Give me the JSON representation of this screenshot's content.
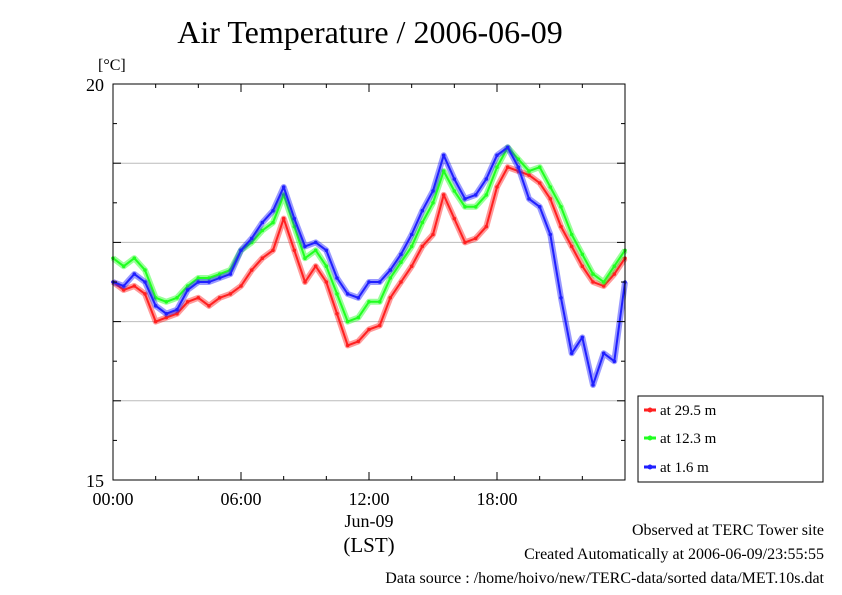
{
  "title": "Air Temperature / 2006-06-09",
  "chart_data": {
    "type": "line",
    "title": "Air Temperature / 2006-06-09",
    "ylabel": "[°C]",
    "xlabel": "(LST)",
    "ylim": [
      15,
      20
    ],
    "xlim": [
      0,
      24
    ],
    "y_tick_labels": [
      "20",
      "15"
    ],
    "y_gridlines": [
      16,
      17,
      18,
      19
    ],
    "x_tick_labels": [
      "00:00",
      "06:00",
      "12:00",
      "18:00"
    ],
    "date_label": "Jun-09",
    "legend_position": "bottom-right",
    "series": [
      {
        "name": "at 29.5 m",
        "color": "#ff2020",
        "x": [
          0,
          0.5,
          1,
          1.5,
          2,
          2.5,
          3,
          3.5,
          4,
          4.5,
          5,
          5.5,
          6,
          6.5,
          7,
          7.5,
          8,
          8.5,
          9,
          9.5,
          10,
          10.5,
          11,
          11.5,
          12,
          12.5,
          13,
          13.5,
          14,
          14.5,
          15,
          15.5,
          16,
          16.5,
          17,
          17.5,
          18,
          18.5,
          19,
          19.5,
          20,
          20.5,
          21,
          21.5,
          22,
          22.5,
          23,
          23.5,
          24
        ],
        "values": [
          17.5,
          17.4,
          17.45,
          17.35,
          17.0,
          17.05,
          17.1,
          17.25,
          17.3,
          17.2,
          17.3,
          17.35,
          17.45,
          17.65,
          17.8,
          17.9,
          18.3,
          17.9,
          17.5,
          17.7,
          17.5,
          17.1,
          16.7,
          16.75,
          16.9,
          16.95,
          17.3,
          17.5,
          17.7,
          17.95,
          18.1,
          18.6,
          18.3,
          18.0,
          18.05,
          18.2,
          18.7,
          18.95,
          18.9,
          18.85,
          18.75,
          18.55,
          18.2,
          17.95,
          17.7,
          17.5,
          17.45,
          17.6,
          17.8
        ]
      },
      {
        "name": "at 12.3 m",
        "color": "#20ff20",
        "x": [
          0,
          0.5,
          1,
          1.5,
          2,
          2.5,
          3,
          3.5,
          4,
          4.5,
          5,
          5.5,
          6,
          6.5,
          7,
          7.5,
          8,
          8.5,
          9,
          9.5,
          10,
          10.5,
          11,
          11.5,
          12,
          12.5,
          13,
          13.5,
          14,
          14.5,
          15,
          15.5,
          16,
          16.5,
          17,
          17.5,
          18,
          18.5,
          19,
          19.5,
          20,
          20.5,
          21,
          21.5,
          22,
          22.5,
          23,
          23.5,
          24
        ],
        "values": [
          17.8,
          17.7,
          17.8,
          17.65,
          17.3,
          17.25,
          17.3,
          17.45,
          17.55,
          17.55,
          17.6,
          17.65,
          17.9,
          18.0,
          18.15,
          18.25,
          18.6,
          18.2,
          17.8,
          17.9,
          17.7,
          17.35,
          17.0,
          17.05,
          17.25,
          17.25,
          17.55,
          17.75,
          17.95,
          18.25,
          18.5,
          18.9,
          18.65,
          18.45,
          18.45,
          18.6,
          18.95,
          19.2,
          19.05,
          18.9,
          18.95,
          18.7,
          18.45,
          18.1,
          17.85,
          17.6,
          17.5,
          17.7,
          17.9
        ]
      },
      {
        "name": "at 1.6 m",
        "color": "#2020ff",
        "x": [
          0,
          0.5,
          1,
          1.5,
          2,
          2.5,
          3,
          3.5,
          4,
          4.5,
          5,
          5.5,
          6,
          6.5,
          7,
          7.5,
          8,
          8.5,
          9,
          9.5,
          10,
          10.5,
          11,
          11.5,
          12,
          12.5,
          13,
          13.5,
          14,
          14.5,
          15,
          15.5,
          16,
          16.5,
          17,
          17.5,
          18,
          18.5,
          19,
          19.5,
          20,
          20.5,
          21,
          21.5,
          22,
          22.5,
          23,
          23.5,
          24
        ],
        "values": [
          17.5,
          17.45,
          17.6,
          17.5,
          17.2,
          17.1,
          17.15,
          17.4,
          17.5,
          17.5,
          17.55,
          17.6,
          17.9,
          18.05,
          18.25,
          18.4,
          18.7,
          18.3,
          17.95,
          18.0,
          17.9,
          17.55,
          17.35,
          17.3,
          17.5,
          17.5,
          17.65,
          17.85,
          18.1,
          18.4,
          18.65,
          19.1,
          18.8,
          18.55,
          18.6,
          18.8,
          19.1,
          19.2,
          18.95,
          18.55,
          18.45,
          18.1,
          17.3,
          16.6,
          16.8,
          16.2,
          16.6,
          16.5,
          17.5
        ]
      }
    ]
  },
  "footer": {
    "line1": "Observed at TERC Tower site",
    "line2": "Created Automatically at 2006-06-09/23:55:55",
    "line3": "Data source : /home/hoivo/new/TERC-data/sorted  data/MET.10s.dat"
  }
}
